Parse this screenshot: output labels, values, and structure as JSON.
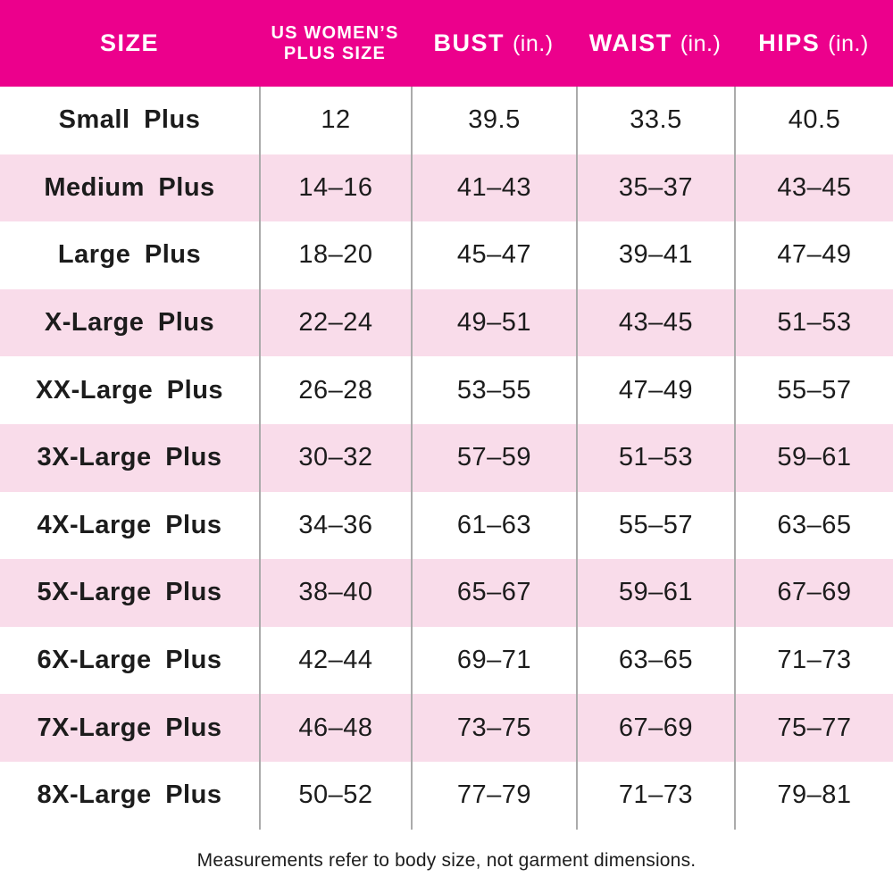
{
  "chart_data": {
    "type": "table",
    "header": {
      "size": "SIZE",
      "plus_size_line1": "US WOMEN’S",
      "plus_size_line2": "PLUS SIZE",
      "bust": "BUST",
      "bust_unit": "(in.)",
      "waist": "WAIST",
      "waist_unit": "(in.)",
      "hips": "HIPS",
      "hips_unit": "(in.)"
    },
    "columns": [
      "SIZE",
      "US WOMEN’S PLUS SIZE",
      "BUST (in.)",
      "WAIST (in.)",
      "HIPS (in.)"
    ],
    "rows": [
      {
        "size": "Small Plus",
        "plus": "12",
        "bust": "39.5",
        "waist": "33.5",
        "hips": "40.5"
      },
      {
        "size": "Medium Plus",
        "plus": "14–16",
        "bust": "41–43",
        "waist": "35–37",
        "hips": "43–45"
      },
      {
        "size": "Large Plus",
        "plus": "18–20",
        "bust": "45–47",
        "waist": "39–41",
        "hips": "47–49"
      },
      {
        "size": "X-Large Plus",
        "plus": "22–24",
        "bust": "49–51",
        "waist": "43–45",
        "hips": "51–53"
      },
      {
        "size": "XX-Large Plus",
        "plus": "26–28",
        "bust": "53–55",
        "waist": "47–49",
        "hips": "55–57"
      },
      {
        "size": "3X-Large Plus",
        "plus": "30–32",
        "bust": "57–59",
        "waist": "51–53",
        "hips": "59–61"
      },
      {
        "size": "4X-Large Plus",
        "plus": "34–36",
        "bust": "61–63",
        "waist": "55–57",
        "hips": "63–65"
      },
      {
        "size": "5X-Large Plus",
        "plus": "38–40",
        "bust": "65–67",
        "waist": "59–61",
        "hips": "67–69"
      },
      {
        "size": "6X-Large Plus",
        "plus": "42–44",
        "bust": "69–71",
        "waist": "63–65",
        "hips": "71–73"
      },
      {
        "size": "7X-Large Plus",
        "plus": "46–48",
        "bust": "73–75",
        "waist": "67–69",
        "hips": "75–77"
      },
      {
        "size": "8X-Large Plus",
        "plus": "50–52",
        "bust": "77–79",
        "waist": "71–73",
        "hips": "79–81"
      }
    ],
    "note": "Measurements refer to body size, not garment dimensions."
  },
  "colors": {
    "header_bg": "#EC008C",
    "header_text": "#FFFFFF",
    "row_bg": "#FFFFFF",
    "row_alt_bg": "#F9DCEA",
    "text": "#1C1C1C",
    "divider": "#ABABAB"
  }
}
